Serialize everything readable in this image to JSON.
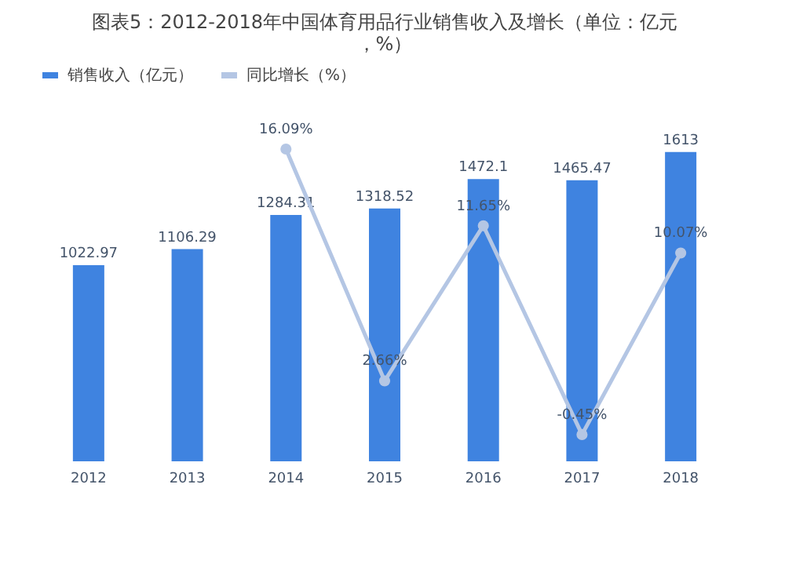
{
  "chart_data": {
    "type": "bar",
    "title": "图表5：2012-2018年中国体育用品行业销售收入及增长（单位：亿元，%）",
    "categories": [
      "2012",
      "2013",
      "2014",
      "2015",
      "2016",
      "2017",
      "2018"
    ],
    "series": [
      {
        "name": "销售收入（亿元）",
        "color": "#3f83e0",
        "values": [
          1022.97,
          1106.29,
          1284.31,
          1318.52,
          1472.1,
          1465.47,
          1613
        ],
        "value_labels": [
          "1022.97",
          "1106.29",
          "1284.31",
          "1318.52",
          "1472.1",
          "1465.47",
          "1613"
        ]
      },
      {
        "name": "同比增长（%）",
        "type": "line",
        "axis": "y2",
        "color": "#b4c6e4",
        "values": [
          null,
          null,
          16.09,
          2.66,
          11.65,
          -0.45,
          10.07
        ],
        "value_labels": [
          null,
          null,
          "16.09%",
          "2.66%",
          "11.65%",
          "-0.45%",
          "10.07%"
        ]
      }
    ],
    "tick_labels": "x",
    "legend": "top",
    "marker": "circle"
  }
}
